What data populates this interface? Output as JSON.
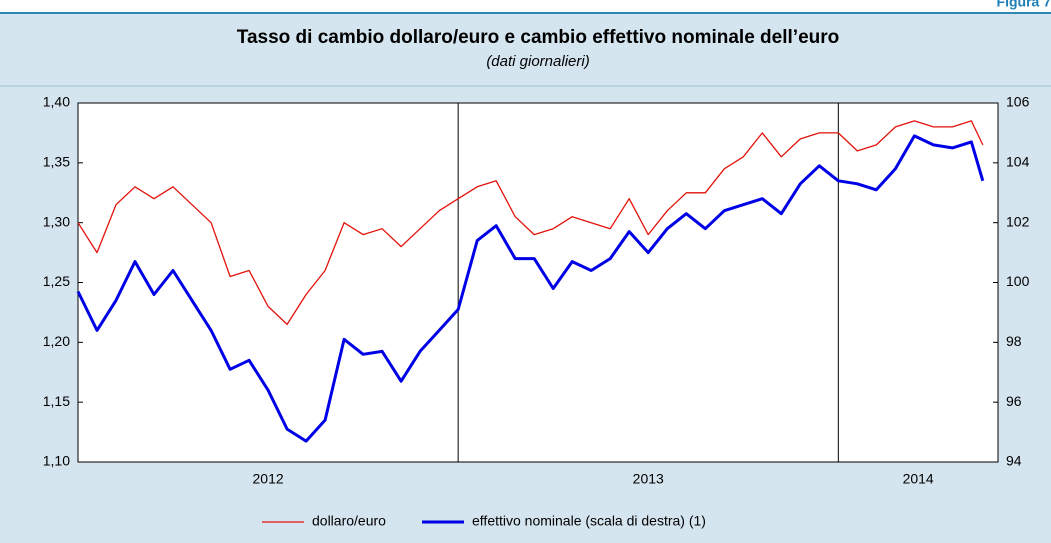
{
  "figure_label": "Figura 7",
  "chart_data": {
    "type": "line",
    "title": "Tasso di cambio dollaro/euro e cambio effettivo nominale dell’euro",
    "subtitle": "(dati giornalieri)",
    "x": [
      2012.0,
      2012.05,
      2012.1,
      2012.15,
      2012.2,
      2012.25,
      2012.3,
      2012.35,
      2012.4,
      2012.45,
      2012.5,
      2012.55,
      2012.6,
      2012.65,
      2012.7,
      2012.75,
      2012.8,
      2012.85,
      2012.9,
      2012.95,
      2013.0,
      2013.05,
      2013.1,
      2013.15,
      2013.2,
      2013.25,
      2013.3,
      2013.35,
      2013.4,
      2013.45,
      2013.5,
      2013.55,
      2013.6,
      2013.65,
      2013.7,
      2013.75,
      2013.8,
      2013.85,
      2013.9,
      2013.95,
      2014.0,
      2014.05,
      2014.1,
      2014.15,
      2014.2,
      2014.25,
      2014.3,
      2014.35,
      2014.38
    ],
    "xlim": [
      2012,
      2014.42
    ],
    "xticks": [
      {
        "value": 2012.5,
        "label": "2012"
      },
      {
        "value": 2013.5,
        "label": "2013"
      },
      {
        "value": 2014.21,
        "label": "2014"
      }
    ],
    "ylim": [
      1.1,
      1.4
    ],
    "yticks": [
      {
        "value": 1.1,
        "label": "1,10"
      },
      {
        "value": 1.15,
        "label": "1,15"
      },
      {
        "value": 1.2,
        "label": "1,20"
      },
      {
        "value": 1.25,
        "label": "1,25"
      },
      {
        "value": 1.3,
        "label": "1,30"
      },
      {
        "value": 1.35,
        "label": "1,35"
      },
      {
        "value": 1.4,
        "label": "1,40"
      }
    ],
    "y2lim": [
      94,
      106
    ],
    "y2ticks": [
      94,
      96,
      98,
      100,
      102,
      104,
      106
    ],
    "legend": "bottom",
    "series": [
      {
        "name": "dollaro/euro",
        "color": "#e3120b",
        "values": [
          1.3,
          1.275,
          1.315,
          1.33,
          1.32,
          1.33,
          1.315,
          1.3,
          1.255,
          1.26,
          1.23,
          1.215,
          1.24,
          1.26,
          1.3,
          1.29,
          1.295,
          1.28,
          1.295,
          1.31,
          1.32,
          1.33,
          1.335,
          1.305,
          1.29,
          1.295,
          1.305,
          1.3,
          1.295,
          1.32,
          1.29,
          1.31,
          1.325,
          1.325,
          1.345,
          1.355,
          1.375,
          1.355,
          1.37,
          1.375,
          1.375,
          1.36,
          1.365,
          1.38,
          1.385,
          1.38,
          1.38,
          1.385,
          1.365
        ]
      },
      {
        "name": "effettivo nominale (scala di destra) (1)",
        "color": "#0000e6",
        "axis": "y2",
        "values": [
          99.7,
          98.4,
          99.4,
          100.7,
          99.6,
          100.4,
          99.4,
          98.4,
          97.1,
          97.4,
          96.4,
          95.1,
          94.7,
          95.4,
          98.1,
          97.6,
          97.7,
          96.7,
          97.7,
          98.4,
          99.1,
          101.4,
          101.9,
          100.8,
          100.8,
          99.8,
          100.7,
          100.4,
          100.8,
          101.7,
          101.0,
          101.8,
          102.3,
          101.8,
          102.4,
          102.6,
          102.8,
          102.3,
          103.3,
          103.9,
          103.4,
          103.3,
          103.1,
          103.8,
          104.9,
          104.6,
          104.5,
          104.7,
          103.4
        ]
      }
    ]
  }
}
